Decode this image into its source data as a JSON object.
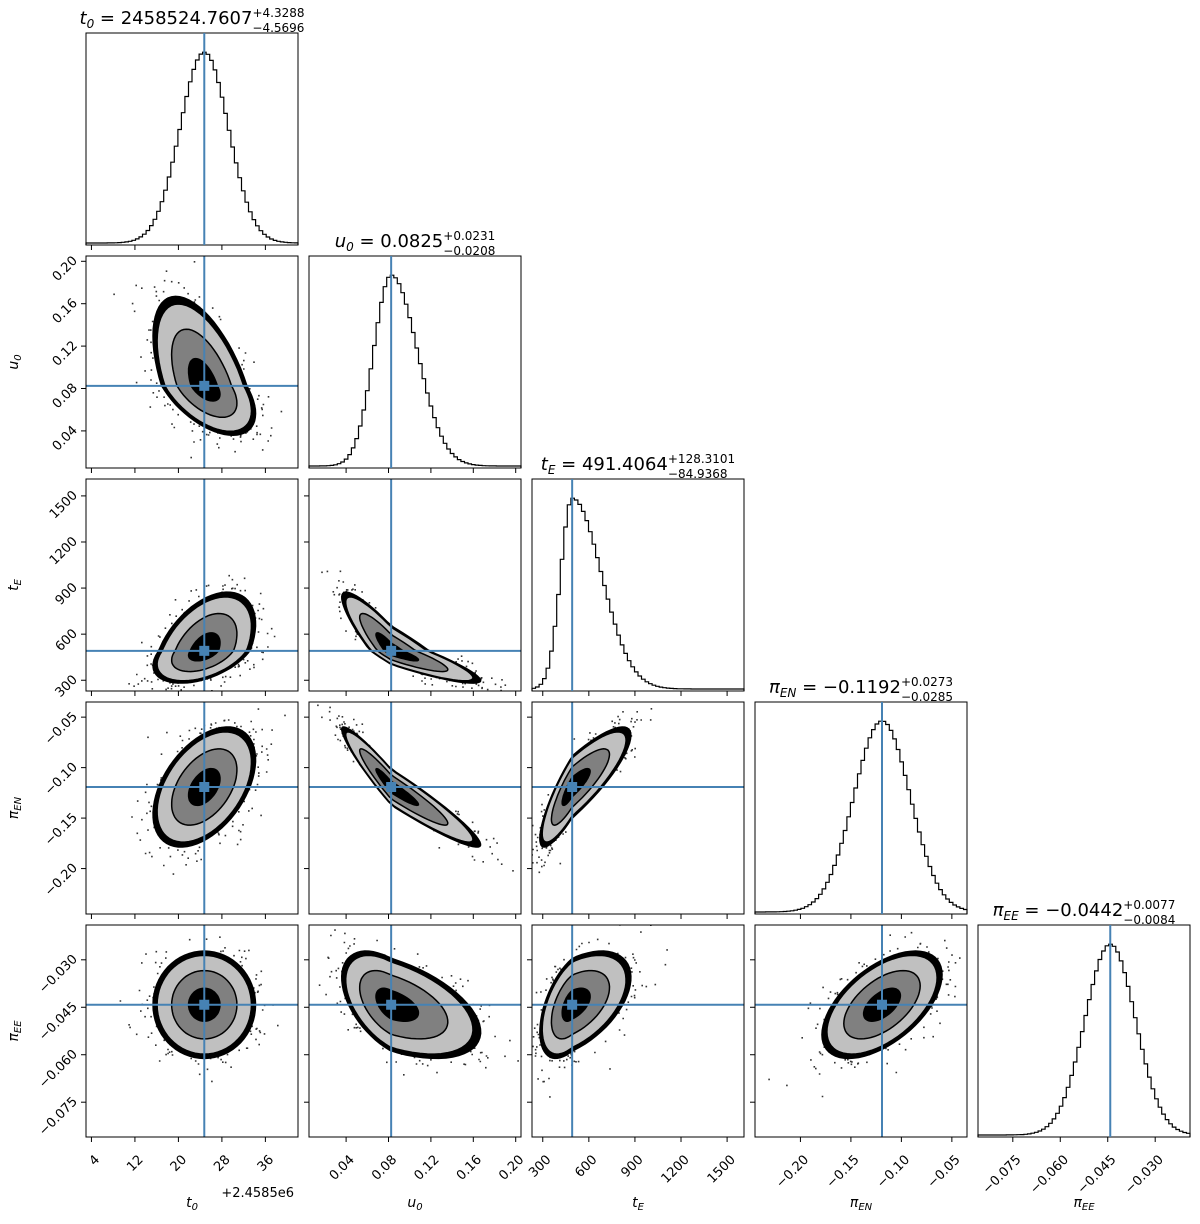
{
  "chart_data": {
    "type": "corner",
    "description_labels": [
      "t0",
      "u0",
      "tE",
      "piEN",
      "piEE"
    ],
    "parameters": [
      {
        "key": "t0",
        "label_main": "t",
        "label_sub": "0",
        "median": 2458524.7607,
        "plus": "4.3288",
        "minus": "4.5696",
        "title_value": "2458524.7607",
        "range": [
          2458503,
          2458542
        ],
        "truth": 2458524.76,
        "sigma": 4.45,
        "skew": 0,
        "ticks": [
          4,
          12,
          20,
          28,
          36
        ],
        "tick_values": [
          2458504,
          2458512,
          2458520,
          2458528,
          2458536
        ],
        "offset_label": "+2.4585e6"
      },
      {
        "key": "u0",
        "label_main": "u",
        "label_sub": "0",
        "median": 0.0825,
        "plus": "0.0231",
        "minus": "0.0208",
        "title_value": "0.0825",
        "range": [
          0.005,
          0.205
        ],
        "truth": 0.0825,
        "sigma": 0.022,
        "skew": 0.2,
        "ticks": [
          "0.04",
          "0.08",
          "0.12",
          "0.16",
          "0.20"
        ],
        "tick_values": [
          0.04,
          0.08,
          0.12,
          0.16,
          0.2
        ]
      },
      {
        "key": "tE",
        "label_main": "t",
        "label_sub": "E",
        "median": 491.4064,
        "plus": "128.3101",
        "minus": "84.9368",
        "title_value": "491.4064",
        "range": [
          230,
          1610
        ],
        "truth": 491.4,
        "sigma": 100,
        "skew": 1.5,
        "ticks": [
          "300",
          "600",
          "900",
          "1200",
          "1500"
        ],
        "tick_values": [
          300,
          600,
          900,
          1200,
          1500
        ]
      },
      {
        "key": "piEN",
        "label_main": "π",
        "label_sub": "EN",
        "median": -0.1192,
        "plus": "0.0273",
        "minus": "0.0285",
        "title_value": "−0.1192",
        "range": [
          -0.245,
          -0.035
        ],
        "truth": -0.1192,
        "sigma": 0.028,
        "skew": 0,
        "ticks": [
          "−0.20",
          "−0.15",
          "−0.10",
          "−0.05"
        ],
        "tick_values": [
          -0.2,
          -0.15,
          -0.1,
          -0.05
        ]
      },
      {
        "key": "piEE",
        "label_main": "π",
        "label_sub": "EE",
        "median": -0.0442,
        "plus": "0.0077",
        "minus": "0.0084",
        "title_value": "−0.0442",
        "range": [
          -0.086,
          -0.019
        ],
        "truth": -0.0442,
        "sigma": 0.008,
        "skew": 0,
        "ticks": [
          "−0.075",
          "−0.060",
          "−0.045",
          "−0.030"
        ],
        "tick_values": [
          -0.075,
          -0.06,
          -0.045,
          -0.03
        ]
      }
    ],
    "correlations": {
      "1_0": -0.55,
      "2_0": 0.45,
      "2_1": -0.9,
      "3_0": 0.45,
      "3_1": -0.95,
      "3_2": 0.85,
      "4_0": 0.0,
      "4_1": -0.5,
      "4_2": 0.5,
      "4_3": 0.55
    },
    "contour_levels": [
      "0.5σ",
      "1σ",
      "1.5σ",
      "2σ"
    ],
    "truth_color": "#4682b4",
    "fill_colors": [
      "#000000",
      "#808080",
      "#c0c0c0"
    ]
  }
}
